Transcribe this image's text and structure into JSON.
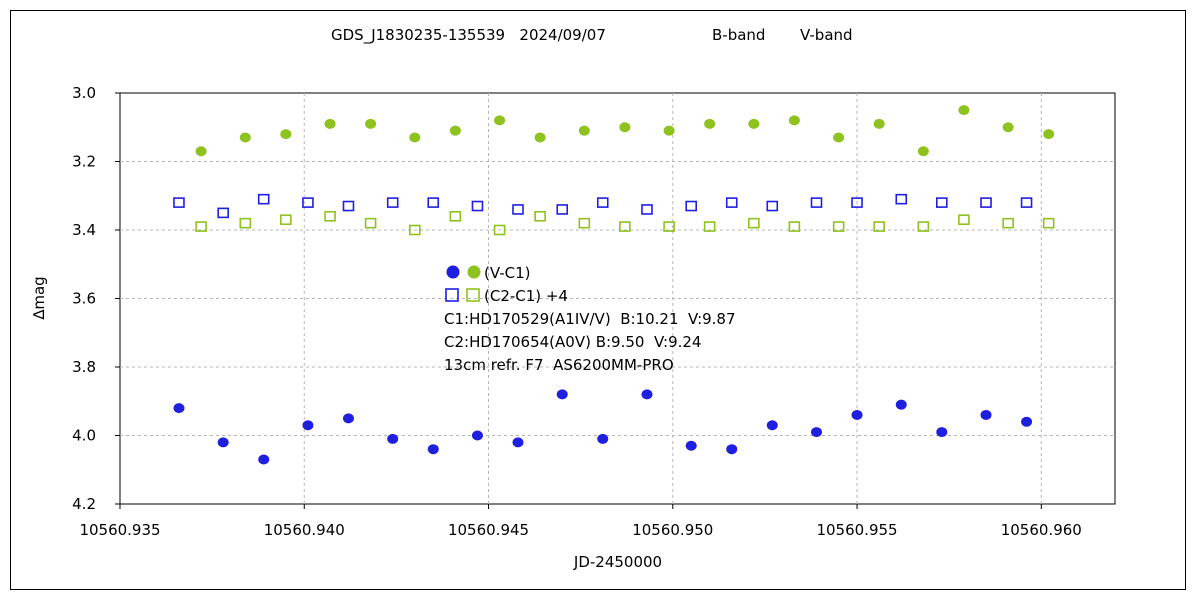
{
  "chart_data": {
    "type": "scatter",
    "title": "GDS_J1830235-135539   2024/09/07",
    "title_b": "B-band",
    "title_v": "V-band",
    "xlabel": "JD-2450000",
    "ylabel": "∆mag",
    "xlim": [
      10560.935,
      10560.962
    ],
    "ylim": [
      4.2,
      3.0
    ],
    "y_inverted": true,
    "x_ticks": [
      "10560.935",
      "10560.940",
      "10560.945",
      "10560.950",
      "10560.955",
      "10560.960"
    ],
    "y_ticks": [
      "3.0",
      "3.2",
      "3.4",
      "3.6",
      "3.8",
      "4.0",
      "4.2"
    ],
    "grid": true,
    "colors": {
      "B": "#1f1fe0",
      "V": "#8ec21f"
    },
    "legend": {
      "line1": "(V-C1)",
      "line2": "(C2-C1) +4",
      "line3": "C1:HD170529(A1IV/V)  B:10.21  V:9.87",
      "line4": "C2:HD170654(A0V) B:9.50  V:9.24",
      "line5": "13cm refr. F7  AS6200MM-PRO"
    },
    "series": [
      {
        "name": "B (V-C1)",
        "band": "B",
        "marker": "filled-circle",
        "x": [
          10560.9366,
          10560.9378,
          10560.9389,
          10560.9401,
          10560.9412,
          10560.9424,
          10560.9435,
          10560.9447,
          10560.9458,
          10560.947,
          10560.9481,
          10560.9493,
          10560.9505,
          10560.9516,
          10560.9527,
          10560.9539,
          10560.955,
          10560.9562,
          10560.9573,
          10560.9585,
          10560.9596
        ],
        "y": [
          3.92,
          4.02,
          4.07,
          3.97,
          3.95,
          4.01,
          4.04,
          4.0,
          4.02,
          3.88,
          4.01,
          3.88,
          4.03,
          4.04,
          3.97,
          3.99,
          3.94,
          3.91,
          3.99,
          3.94,
          3.96
        ]
      },
      {
        "name": "V (V-C1)",
        "band": "V",
        "marker": "filled-circle",
        "x": [
          10560.9372,
          10560.9384,
          10560.9395,
          10560.9407,
          10560.9418,
          10560.943,
          10560.9441,
          10560.9453,
          10560.9464,
          10560.9476,
          10560.9487,
          10560.9499,
          10560.951,
          10560.9522,
          10560.9533,
          10560.9545,
          10560.9556,
          10560.9568,
          10560.9579,
          10560.9591,
          10560.9602
        ],
        "y": [
          3.17,
          3.13,
          3.12,
          3.09,
          3.09,
          3.13,
          3.11,
          3.08,
          3.13,
          3.11,
          3.1,
          3.11,
          3.09,
          3.09,
          3.08,
          3.13,
          3.09,
          3.17,
          3.05,
          3.1,
          3.12
        ]
      },
      {
        "name": "B (C2-C1)+4",
        "band": "B",
        "marker": "open-square",
        "x": [
          10560.9366,
          10560.9378,
          10560.9389,
          10560.9401,
          10560.9412,
          10560.9424,
          10560.9435,
          10560.9447,
          10560.9458,
          10560.947,
          10560.9481,
          10560.9493,
          10560.9505,
          10560.9516,
          10560.9527,
          10560.9539,
          10560.955,
          10560.9562,
          10560.9573,
          10560.9585,
          10560.9596
        ],
        "y": [
          3.32,
          3.35,
          3.31,
          3.32,
          3.33,
          3.32,
          3.32,
          3.33,
          3.34,
          3.34,
          3.32,
          3.34,
          3.33,
          3.32,
          3.33,
          3.32,
          3.32,
          3.31,
          3.32,
          3.32,
          3.32
        ]
      },
      {
        "name": "V (C2-C1)+4",
        "band": "V",
        "marker": "open-square",
        "x": [
          10560.9372,
          10560.9384,
          10560.9395,
          10560.9407,
          10560.9418,
          10560.943,
          10560.9441,
          10560.9453,
          10560.9464,
          10560.9476,
          10560.9487,
          10560.9499,
          10560.951,
          10560.9522,
          10560.9533,
          10560.9545,
          10560.9556,
          10560.9568,
          10560.9579,
          10560.9591,
          10560.9602
        ],
        "y": [
          3.39,
          3.38,
          3.37,
          3.36,
          3.38,
          3.4,
          3.36,
          3.4,
          3.36,
          3.38,
          3.39,
          3.39,
          3.39,
          3.38,
          3.39,
          3.39,
          3.39,
          3.39,
          3.37,
          3.38,
          3.38
        ]
      }
    ]
  }
}
